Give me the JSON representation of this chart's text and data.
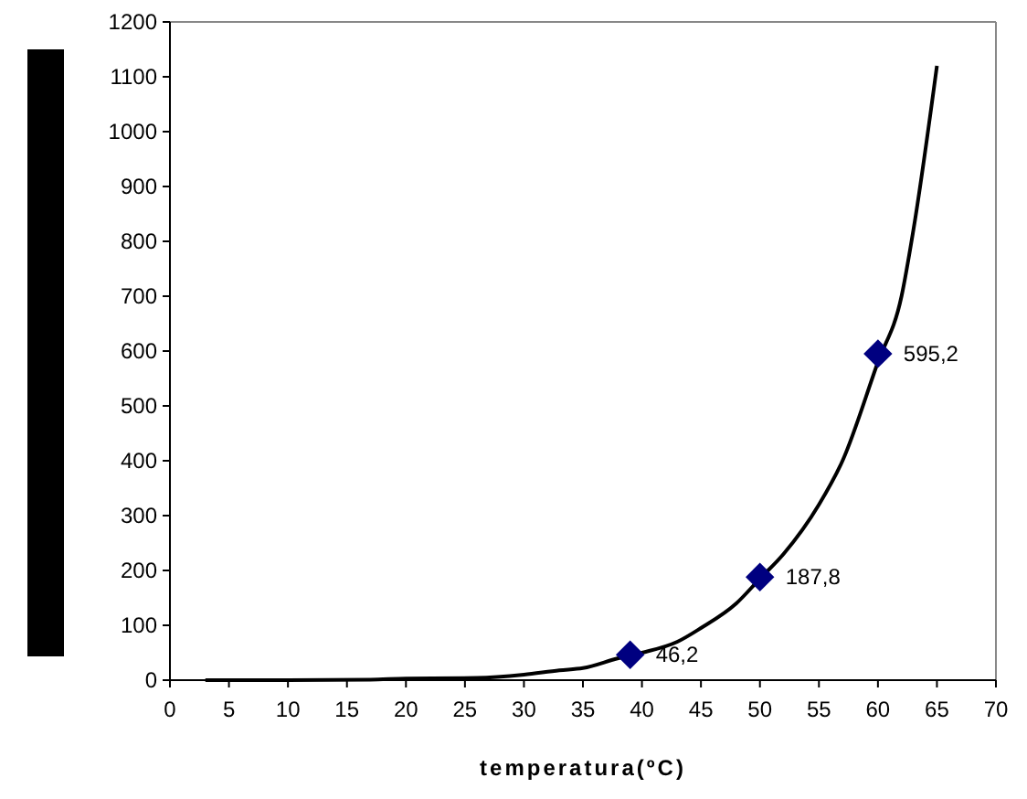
{
  "chart_data": {
    "type": "line",
    "xlabel": "temperatura(ºC)",
    "xlim": [
      0,
      70
    ],
    "xticks": [
      0,
      5,
      10,
      15,
      20,
      25,
      30,
      35,
      40,
      45,
      50,
      55,
      60,
      65,
      70
    ],
    "ylim": [
      0,
      1200
    ],
    "yticks": [
      0,
      100,
      200,
      300,
      400,
      500,
      600,
      700,
      800,
      900,
      1000,
      1100,
      1200
    ],
    "grid": false,
    "series": [
      {
        "type": "line",
        "color": "#000000",
        "marker": "none",
        "x": [
          3,
          10,
          17,
          20,
          26,
          30,
          33,
          35,
          38,
          40,
          43,
          45,
          48,
          50,
          52,
          55,
          57,
          60,
          62,
          63,
          65
        ],
        "values": [
          0,
          0,
          1,
          3,
          4,
          10,
          18,
          22,
          40,
          50,
          70,
          95,
          140,
          185,
          230,
          320,
          400,
          580,
          700,
          820,
          1120
        ]
      },
      {
        "type": "scatter",
        "color": "#000080",
        "marker": "diamond",
        "x": [
          39,
          50,
          60
        ],
        "values": [
          46.2,
          187.8,
          595.2
        ],
        "value_labels": [
          "46,2",
          "187,8",
          "595,2"
        ]
      }
    ]
  }
}
